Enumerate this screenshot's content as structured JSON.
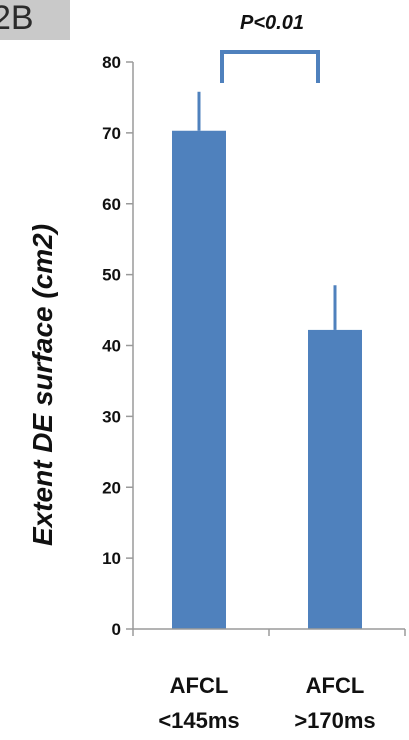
{
  "panel_label": "2B",
  "chart_data": {
    "type": "bar",
    "title": "",
    "xlabel": "",
    "ylabel": "Extent DE surface (cm2)",
    "ylim": [
      0,
      80
    ],
    "yticks": [
      0,
      10,
      20,
      30,
      40,
      50,
      60,
      70,
      80
    ],
    "grid": false,
    "categories": [
      [
        "AFCL",
        "<145ms"
      ],
      [
        ">170ms"
      ]
    ],
    "category_lines": [
      [
        "AFCL",
        "<145ms"
      ],
      [
        "AFCL",
        ">170ms"
      ]
    ],
    "values": [
      70.3,
      42.2
    ],
    "error_bars": [
      5.5,
      6.3
    ],
    "bar_color": "#4f81bd",
    "annotation": {
      "text": "P<0.01",
      "bracket_color": "#4f81bd"
    }
  }
}
